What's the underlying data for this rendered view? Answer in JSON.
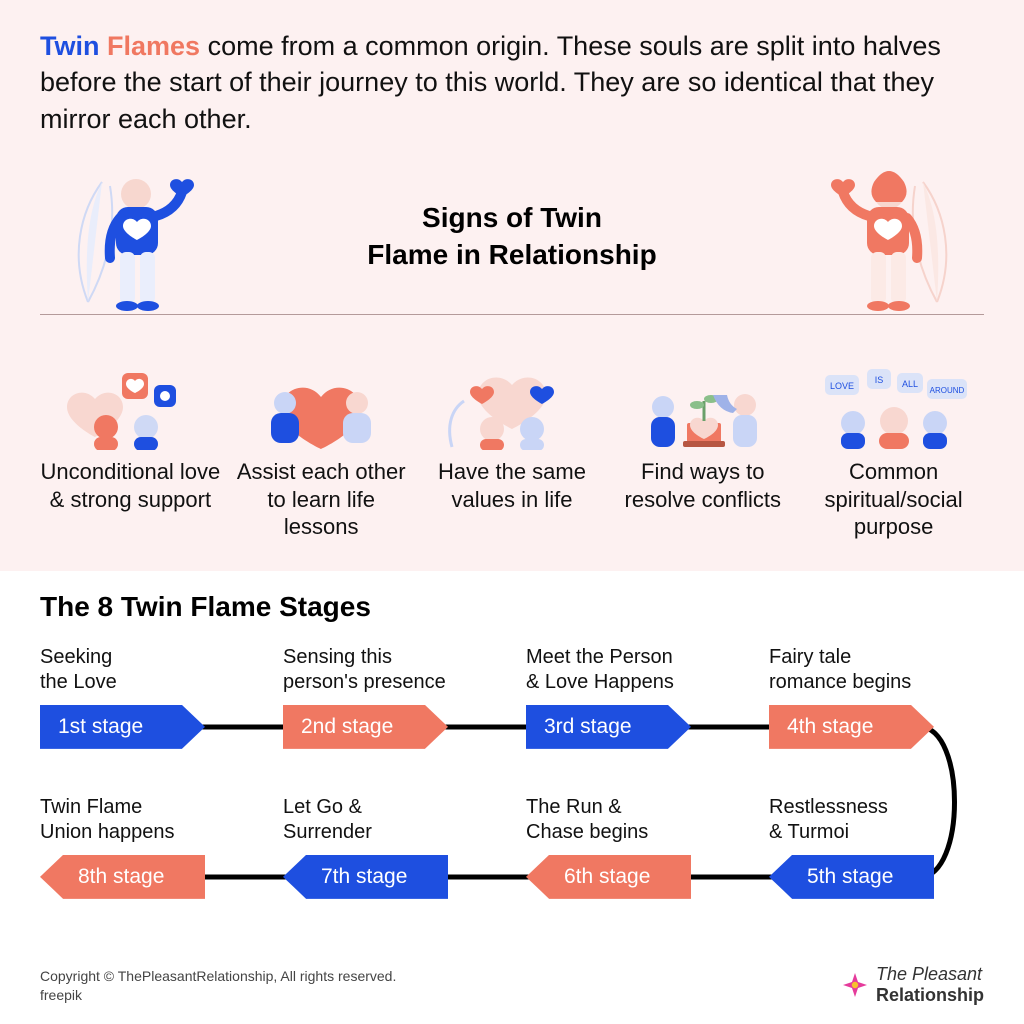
{
  "colors": {
    "blue": "#1e4fe0",
    "salmon": "#f07862",
    "pink_bg": "#fdf1f1",
    "white": "#ffffff",
    "text": "#111111",
    "rule": "#b49a9a",
    "connector": "#000000",
    "brand_magenta": "#e53b9b",
    "brand_yellow": "#f6c22d"
  },
  "typography": {
    "intro_fontsize": 27,
    "section_title_fontsize": 28,
    "sign_label_fontsize": 22,
    "stage_label_fontsize": 20,
    "tag_fontsize": 21,
    "footer_fontsize": 14
  },
  "intro": {
    "twin": "Twin",
    "flames": "Flames",
    "rest": " come from a common origin. These souls are split into halves before the start of their journey to this world. They are so identical that they mirror each other."
  },
  "signs_section": {
    "title_line1": "Signs of Twin",
    "title_line2": "Flame in Relationship",
    "hero_left_color": "blue",
    "hero_right_color": "salmon",
    "items": [
      {
        "label": "Unconditional love & strong support"
      },
      {
        "label": "Assist each other to learn life lessons"
      },
      {
        "label": "Have the same values in life"
      },
      {
        "label": "Find ways to resolve conflicts"
      },
      {
        "label": "Common spiritual/social purpose"
      }
    ]
  },
  "stages_section": {
    "heading": "The 8 Twin Flame Stages",
    "connector_stroke_width": 5,
    "top_row": [
      {
        "label": "Seeking\nthe Love",
        "tag": "1st stage",
        "color": "blue",
        "dir": "fwd"
      },
      {
        "label": "Sensing this\nperson's presence",
        "tag": "2nd stage",
        "color": "salmon",
        "dir": "fwd"
      },
      {
        "label": "Meet the Person\n& Love Happens",
        "tag": "3rd stage",
        "color": "blue",
        "dir": "fwd"
      },
      {
        "label": "Fairy tale\nromance begins",
        "tag": "4th stage",
        "color": "salmon",
        "dir": "fwd"
      }
    ],
    "bottom_row": [
      {
        "label": "Twin Flame\nUnion happens",
        "tag": "8th stage",
        "color": "salmon",
        "dir": "rev"
      },
      {
        "label": "Let Go &\nSurrender",
        "tag": "7th stage",
        "color": "blue",
        "dir": "rev"
      },
      {
        "label": "The Run &\nChase begins",
        "tag": "6th stage",
        "color": "salmon",
        "dir": "rev"
      },
      {
        "label": "Restlessness\n& Turmoi",
        "tag": "5th stage",
        "color": "blue",
        "dir": "rev"
      }
    ]
  },
  "footer": {
    "copyright": "Copyright © ThePleasantRelationship, All rights reserved.",
    "credit": "freepik",
    "brand_line1": "The Pleasant",
    "brand_line2": "Relationship"
  }
}
